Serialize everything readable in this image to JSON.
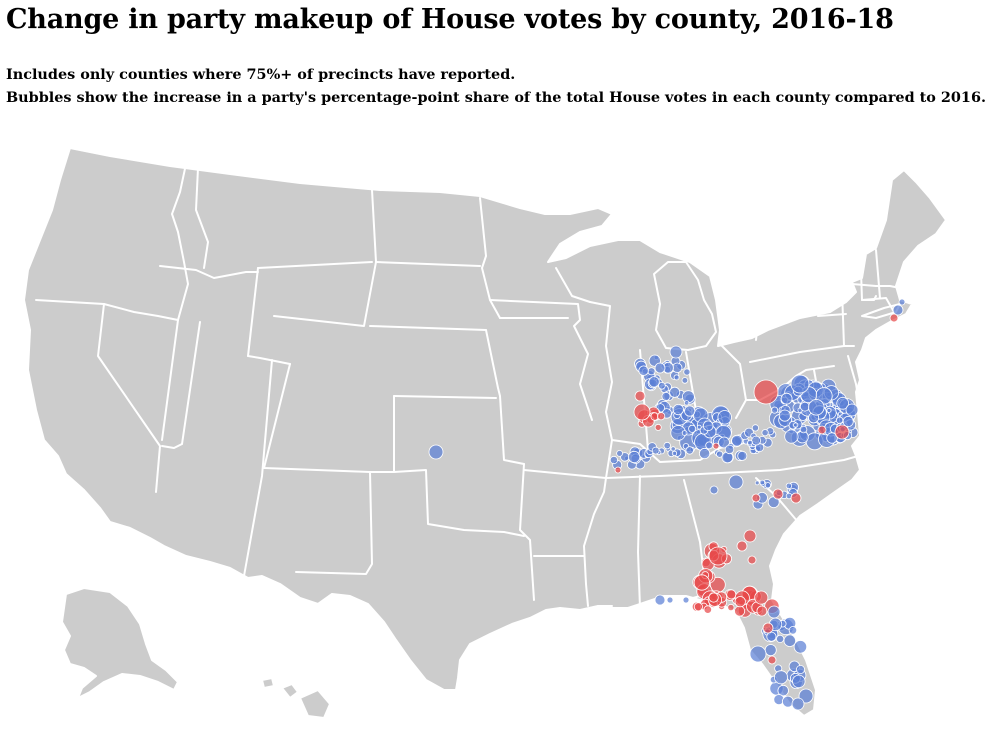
{
  "header": {
    "title": "Change in party makeup of House votes by county, 2016-18",
    "subtitle_1": "Includes only counties where 75%+ of precincts have reported.",
    "subtitle_2": "Bubbles show the increase in a party's percentage-point share of the total House votes in each county compared to 2016."
  },
  "map": {
    "land_color": "#cccccc",
    "border_color": "#ffffff",
    "parties": {
      "dem": {
        "color": "#5b7fd6",
        "opacity": 0.72
      },
      "rep": {
        "color": "#e8484a",
        "opacity": 0.72
      }
    }
  }
}
